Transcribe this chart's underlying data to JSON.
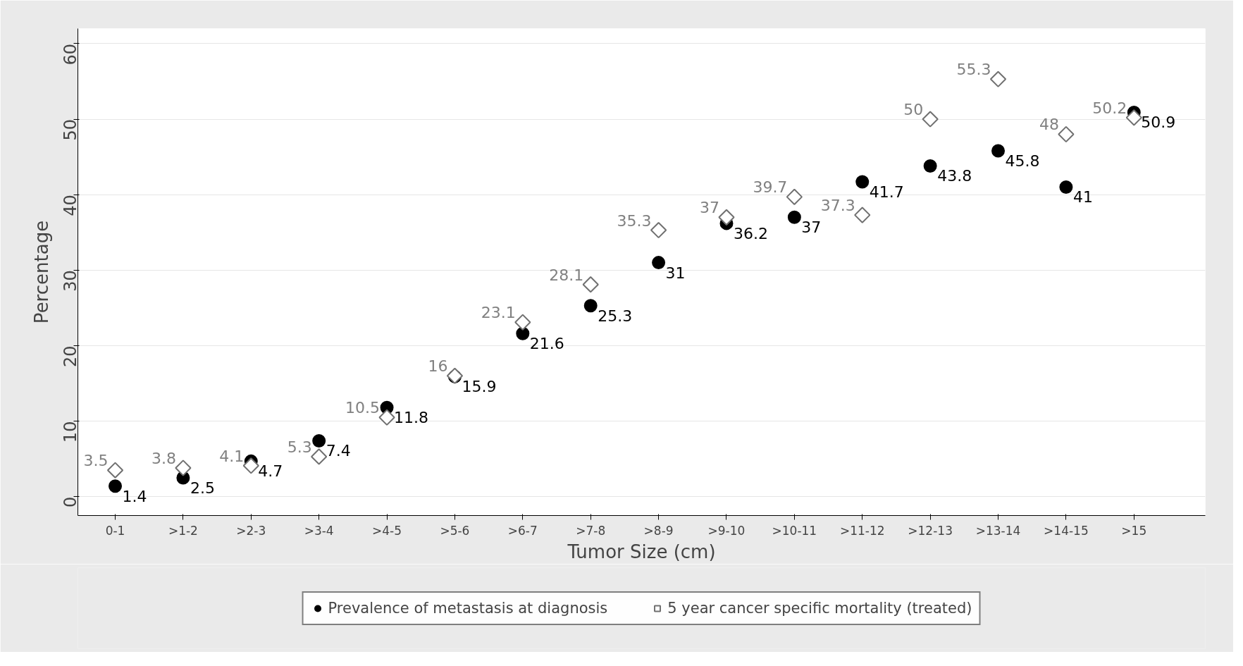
{
  "chart_data": {
    "type": "scatter",
    "xlabel": "Tumor Size (cm)",
    "ylabel": "Percentage",
    "categories": [
      "0-1",
      ">1-2",
      ">2-3",
      ">3-4",
      ">4-5",
      ">5-6",
      ">6-7",
      ">7-8",
      ">8-9",
      ">9-10",
      ">10-11",
      ">11-12",
      ">12-13",
      ">13-14",
      ">14-15",
      ">15"
    ],
    "series": [
      {
        "name": "Prevalence of metastasis at diagnosis",
        "color": "#000000",
        "marker": "circle",
        "values": [
          1.4,
          2.5,
          4.7,
          7.4,
          11.8,
          15.9,
          21.6,
          25.3,
          31,
          36.2,
          37,
          41.7,
          43.8,
          45.8,
          41,
          50.9
        ]
      },
      {
        "name": "5 year cancer specific mortality (treated)",
        "color": "#707070",
        "marker": "diamond",
        "values": [
          3.5,
          3.8,
          4.1,
          5.3,
          10.5,
          16,
          23.1,
          28.1,
          35.3,
          37,
          39.7,
          37.3,
          50,
          55.3,
          48,
          50.2
        ]
      }
    ],
    "ylim": [
      -2.5,
      62
    ],
    "yticks": [
      0,
      10,
      20,
      30,
      40,
      50,
      60
    ],
    "grid": "y",
    "legend": "bottom",
    "data_labels": true
  }
}
